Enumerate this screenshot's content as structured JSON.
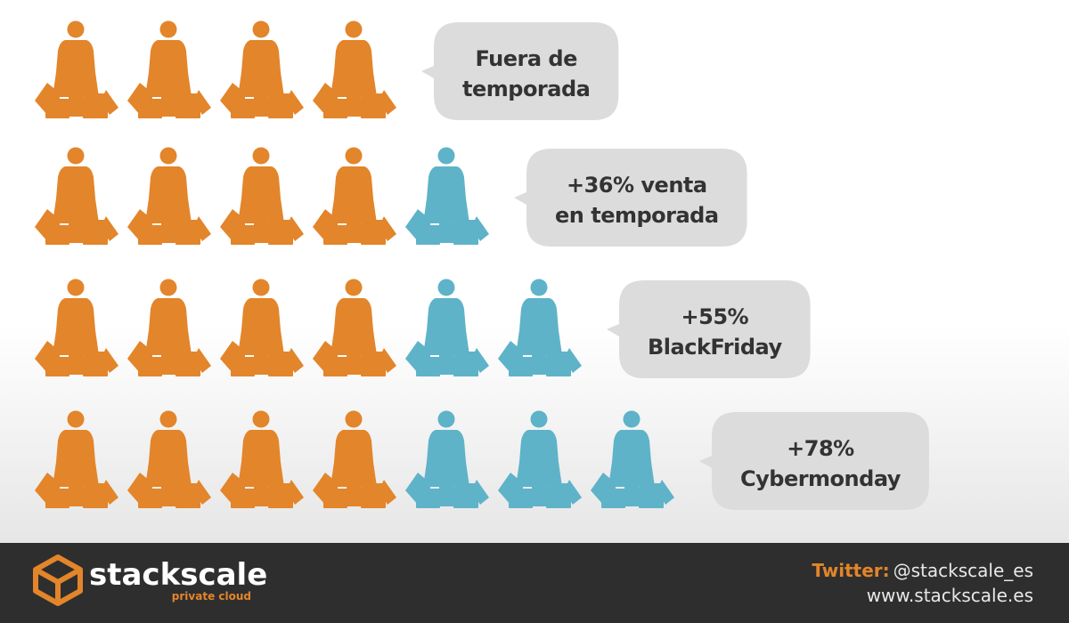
{
  "rows": [
    {
      "lines": [
        "Fuera de",
        "temporada"
      ],
      "orange_icons": 4,
      "blue_icons": 0
    },
    {
      "lines": [
        "+36% venta",
        "en temporada"
      ],
      "orange_icons": 4,
      "blue_icons": 1
    },
    {
      "lines": [
        "+55%",
        "BlackFriday"
      ],
      "orange_icons": 4,
      "blue_icons": 2
    },
    {
      "lines": [
        "+78%",
        "Cybermonday"
      ],
      "orange_icons": 4,
      "blue_icons": 3
    }
  ],
  "footer": {
    "brand": "stackscale",
    "tagline": "private cloud",
    "twitter_label": "Twitter:",
    "twitter_handle": "@stackscale_es",
    "website": "www.stackscale.es"
  }
}
